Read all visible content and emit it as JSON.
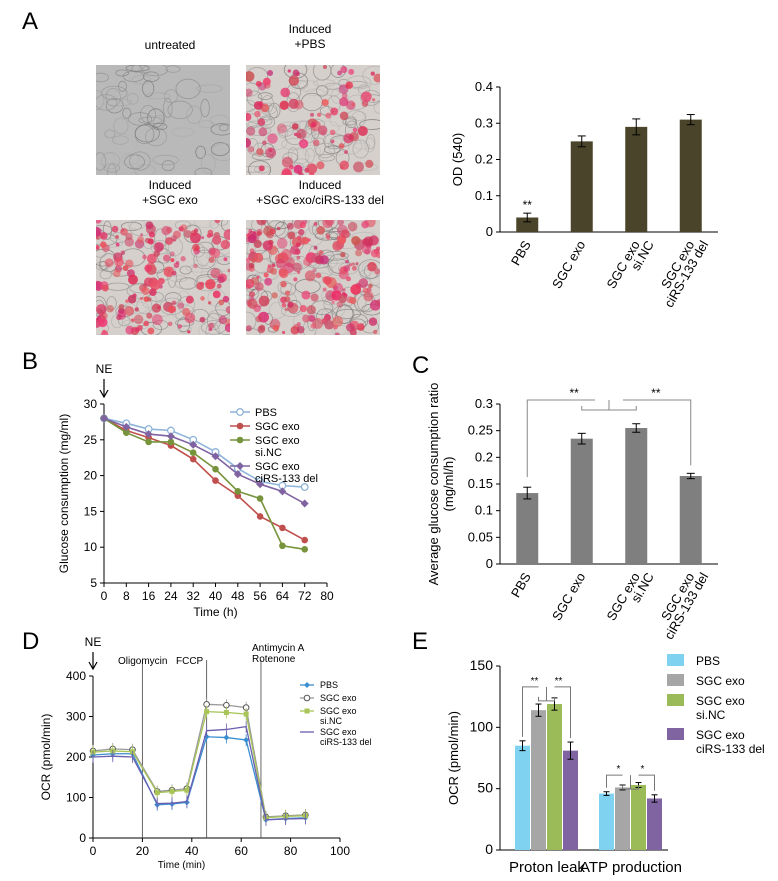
{
  "panels": {
    "A": "A",
    "B": "B",
    "C": "C",
    "D": "D",
    "E": "E"
  },
  "micrographs": [
    {
      "label": "untreated",
      "tone": "gray"
    },
    {
      "label": "Induced\n+PBS",
      "tone": "red-sparse"
    },
    {
      "label": "Induced\n+SGC exo",
      "tone": "red"
    },
    {
      "label": "Induced\n+SGC exo/ciRS-133 del",
      "tone": "red-dense"
    }
  ],
  "colors": {
    "bar_dark": "#4a452a",
    "bar_gray": "#7f7f7f",
    "pbs": "#8fb4d9",
    "sgc": "#c0504d",
    "sinc": "#77933c",
    "del": "#8064a2",
    "e_pbs": "#7fd3f0",
    "e_sgc": "#a6a6a6",
    "e_sinc": "#9bbb59",
    "e_del": "#8064a2",
    "d_pbs": "#3a8fd0",
    "d_sgc": "#9a9a9a",
    "d_sinc": "#a9c55a",
    "d_del": "#6b5fb0"
  },
  "chart_data": [
    {
      "panel": "A",
      "type": "bar",
      "categories": [
        "PBS",
        "SGC exo",
        "SGC exo\nsi.NC",
        "SGC exo\nciRS-133 del"
      ],
      "values": [
        0.04,
        0.25,
        0.29,
        0.31
      ],
      "errors": [
        0.012,
        0.015,
        0.022,
        0.014
      ],
      "ylabel": "OD (540)",
      "ylim": [
        0,
        0.4
      ],
      "yticks": [
        0,
        0.1,
        0.2,
        0.3,
        0.4
      ],
      "annotations": [
        {
          "category": "PBS",
          "text": "**"
        }
      ]
    },
    {
      "panel": "B",
      "type": "line",
      "annotation": "NE",
      "xlabel": "Time (h)",
      "ylabel": "Glucose consumption (mg/ml)",
      "xlim": [
        0,
        80
      ],
      "ylim": [
        5,
        30
      ],
      "xticks": [
        0,
        8,
        16,
        24,
        32,
        40,
        48,
        56,
        64,
        72,
        80
      ],
      "yticks": [
        5,
        10,
        15,
        20,
        25,
        30
      ],
      "x": [
        0,
        8,
        16,
        24,
        32,
        40,
        48,
        56,
        64,
        72
      ],
      "series": [
        {
          "name": "PBS",
          "color": "pbs",
          "marker": "circle-open",
          "values": [
            28,
            27.3,
            26.5,
            26.3,
            25,
            23.3,
            21,
            19.2,
            18.6,
            18.4
          ]
        },
        {
          "name": "SGC exo",
          "color": "sgc",
          "marker": "circle",
          "values": [
            28,
            26.3,
            25.3,
            24.2,
            22.3,
            19.3,
            17.2,
            14.3,
            12.7,
            11
          ]
        },
        {
          "name": "SGC exo\nsi.NC",
          "color": "sinc",
          "marker": "circle",
          "values": [
            28,
            26,
            24.7,
            24.7,
            23.2,
            20.9,
            17.8,
            16.8,
            10.2,
            9.7
          ]
        },
        {
          "name": "SGC exo\nciRS-133 del",
          "color": "del",
          "marker": "diamond",
          "values": [
            28,
            26.8,
            25.8,
            25.5,
            24.3,
            22.7,
            20.2,
            18.8,
            17.8,
            16.1
          ]
        }
      ]
    },
    {
      "panel": "C",
      "type": "bar",
      "categories": [
        "PBS",
        "SGC exo",
        "SGC exo\nsi.NC",
        "SGC exo\nciRS-133 del"
      ],
      "values": [
        0.133,
        0.235,
        0.255,
        0.165
      ],
      "errors": [
        0.011,
        0.01,
        0.008,
        0.005
      ],
      "ylabel": "Average glucose consumption ratio\n(mg/ml/h)",
      "ylim": [
        0,
        0.3
      ],
      "yticks": [
        0,
        0.05,
        0.1,
        0.15,
        0.2,
        0.25,
        0.3
      ],
      "annotations": [
        "**",
        "**"
      ]
    },
    {
      "panel": "D",
      "type": "line",
      "annotation": "NE",
      "phases": [
        "Oligomycin",
        "FCCP",
        "Antimycin A\nRotenone"
      ],
      "phase_x": [
        20,
        46,
        68
      ],
      "xlabel": "Time (min)",
      "ylabel": "OCR (pmol/min)",
      "xlim": [
        0,
        100
      ],
      "ylim": [
        0,
        400
      ],
      "xticks": [
        0,
        20,
        40,
        60,
        80,
        100
      ],
      "yticks": [
        0,
        100,
        200,
        300,
        400
      ],
      "x": [
        0,
        8,
        16,
        26,
        32,
        38,
        46,
        54,
        62,
        70,
        78,
        86
      ],
      "series": [
        {
          "name": "PBS",
          "color": "d_pbs",
          "marker": "diamond",
          "values": [
            205,
            208,
            208,
            82,
            84,
            88,
            250,
            248,
            242,
            45,
            48,
            50
          ]
        },
        {
          "name": "SGC exo",
          "color": "d_sgc",
          "marker": "circle-open",
          "values": [
            215,
            220,
            218,
            115,
            118,
            122,
            330,
            328,
            322,
            52,
            55,
            57
          ]
        },
        {
          "name": "SGC exo\nsi.NC",
          "color": "d_sinc",
          "marker": "square",
          "values": [
            212,
            215,
            213,
            112,
            115,
            118,
            312,
            310,
            306,
            50,
            53,
            55
          ]
        },
        {
          "name": "SGC exo\nciRS-133 del",
          "color": "d_del",
          "marker": "line",
          "values": [
            200,
            202,
            200,
            85,
            86,
            90,
            265,
            268,
            275,
            45,
            47,
            48
          ]
        }
      ]
    },
    {
      "panel": "E",
      "type": "bar",
      "categories": [
        "Proton leak",
        "ATP production"
      ],
      "series": [
        {
          "name": "PBS",
          "color": "e_pbs",
          "values": [
            85,
            46
          ],
          "errors": [
            4,
            1.5
          ]
        },
        {
          "name": "SGC exo",
          "color": "e_sgc",
          "values": [
            114,
            51
          ],
          "errors": [
            5,
            2
          ]
        },
        {
          "name": "SGC exo\nsi.NC",
          "color": "e_sinc",
          "values": [
            119,
            53
          ],
          "errors": [
            5,
            2
          ]
        },
        {
          "name": "SGC exo\nciRS-133 del",
          "color": "e_del",
          "values": [
            81,
            42
          ],
          "errors": [
            7,
            3
          ]
        }
      ],
      "ylabel": "OCR (pmol/min)",
      "ylim": [
        0,
        150
      ],
      "yticks": [
        0,
        50,
        100,
        150
      ],
      "annotations": [
        "**",
        "**",
        "*",
        "*"
      ]
    }
  ]
}
